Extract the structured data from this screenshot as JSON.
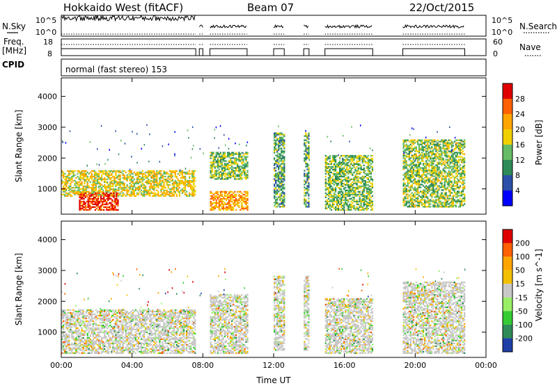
{
  "header": {
    "title": "Hokkaido West (fitACF)",
    "beam": "Beam 07",
    "date": "22/Oct/2015"
  },
  "mini_panels": {
    "nsky_label": "N.Sky",
    "nsky_ticks": [
      "10^5",
      "10^0"
    ],
    "nsearch_label": "N.Search",
    "nsearch_ticks": [
      "10^5",
      "10^0"
    ],
    "freq_label_1": "Freq.",
    "freq_label_2": "[MHz]",
    "freq_ticks": [
      "18",
      "8"
    ],
    "nave_label": "Nave",
    "nave_ticks": [
      "60",
      "0"
    ],
    "cpid_label": "CPID",
    "cpid_text": "normal (fast stereo) 153"
  },
  "colors": {
    "background": "#ffffff",
    "axis": "#000000"
  },
  "chart_data": [
    {
      "type": "heatmap",
      "parameter": "power",
      "xlabel": "Time UT",
      "ylabel": "Slant Range [km]",
      "xlim_hours": [
        0,
        24
      ],
      "x_ticks": [
        "00:00",
        "04:00",
        "08:00",
        "12:00",
        "16:00",
        "20:00",
        "00:00"
      ],
      "ylim_km": [
        180,
        4600
      ],
      "y_ticks": [
        "1000",
        "2000",
        "3000",
        "4000"
      ],
      "colorbar": {
        "label": "Power [dB]",
        "ticks": [
          "4",
          "8",
          "12",
          "16",
          "20",
          "24",
          "28"
        ],
        "range": [
          0,
          32
        ],
        "colors": [
          "#0000ff",
          "#2c4fa8",
          "#2e8b57",
          "#66bb66",
          "#f2d000",
          "#ffa500",
          "#ff6000",
          "#e00000"
        ]
      },
      "data_gaps_hours": [
        [
          7.6,
          7.8
        ],
        [
          8.0,
          8.4
        ],
        [
          10.5,
          12.0
        ],
        [
          12.6,
          13.7
        ],
        [
          14.0,
          14.9
        ],
        [
          17.6,
          19.3
        ],
        [
          22.8,
          24
        ]
      ],
      "regions": [
        {
          "t": [
            0.0,
            7.6
          ],
          "r": [
            750,
            1600
          ],
          "dB": 18,
          "note": "main band"
        },
        {
          "t": [
            1.0,
            3.2
          ],
          "r": [
            300,
            850
          ],
          "dB": 29,
          "note": "strong near-range echoes"
        },
        {
          "t": [
            8.4,
            10.5
          ],
          "r": [
            300,
            900
          ],
          "dB": 22
        },
        {
          "t": [
            8.4,
            10.5
          ],
          "r": [
            1300,
            2200
          ],
          "dB": 14
        },
        {
          "t": [
            12.0,
            12.6
          ],
          "r": [
            400,
            2800
          ],
          "dB": 12
        },
        {
          "t": [
            13.7,
            14.0
          ],
          "r": [
            400,
            2800
          ],
          "dB": 12
        },
        {
          "t": [
            14.9,
            17.6
          ],
          "r": [
            300,
            2100
          ],
          "dB": 14
        },
        {
          "t": [
            19.3,
            22.8
          ],
          "r": [
            400,
            2600
          ],
          "dB": 15
        }
      ]
    },
    {
      "type": "heatmap",
      "parameter": "velocity",
      "xlabel": "Time UT",
      "ylabel": "Slant Range [km]",
      "xlim_hours": [
        0,
        24
      ],
      "x_ticks": [
        "00:00",
        "04:00",
        "08:00",
        "12:00",
        "16:00",
        "20:00",
        "00:00"
      ],
      "ylim_km": [
        180,
        4600
      ],
      "y_ticks": [
        "1000",
        "2000",
        "3000",
        "4000"
      ],
      "colorbar": {
        "label": "Velocity [m s^-1]",
        "ticks": [
          "200",
          "100",
          "50",
          "15",
          "-15",
          "-50",
          "-100",
          "-200"
        ],
        "colors": [
          "#1f3fa6",
          "#2e8b57",
          "#33cc33",
          "#99ee66",
          "#c8c8c8",
          "#f2c000",
          "#ffa500",
          "#ff6000",
          "#e00000"
        ]
      },
      "data_gaps_hours": [
        [
          7.6,
          7.8
        ],
        [
          8.0,
          8.4
        ],
        [
          10.5,
          12.0
        ],
        [
          12.6,
          13.7
        ],
        [
          14.0,
          14.9
        ],
        [
          17.6,
          19.3
        ],
        [
          22.8,
          24
        ]
      ],
      "regions": [
        {
          "t": [
            0.0,
            7.6
          ],
          "r": [
            300,
            1700
          ],
          "ms": 0,
          "note": "mostly low velocity (grey)"
        },
        {
          "t": [
            8.4,
            10.5
          ],
          "r": [
            300,
            2200
          ],
          "ms": 0
        },
        {
          "t": [
            12.0,
            12.6
          ],
          "r": [
            400,
            2800
          ],
          "ms": -10
        },
        {
          "t": [
            13.7,
            14.0
          ],
          "r": [
            400,
            2800
          ],
          "ms": -30
        },
        {
          "t": [
            14.9,
            17.6
          ],
          "r": [
            300,
            2100
          ],
          "ms": -10
        },
        {
          "t": [
            19.3,
            22.8
          ],
          "r": [
            300,
            2600
          ],
          "ms": 20
        }
      ]
    }
  ]
}
